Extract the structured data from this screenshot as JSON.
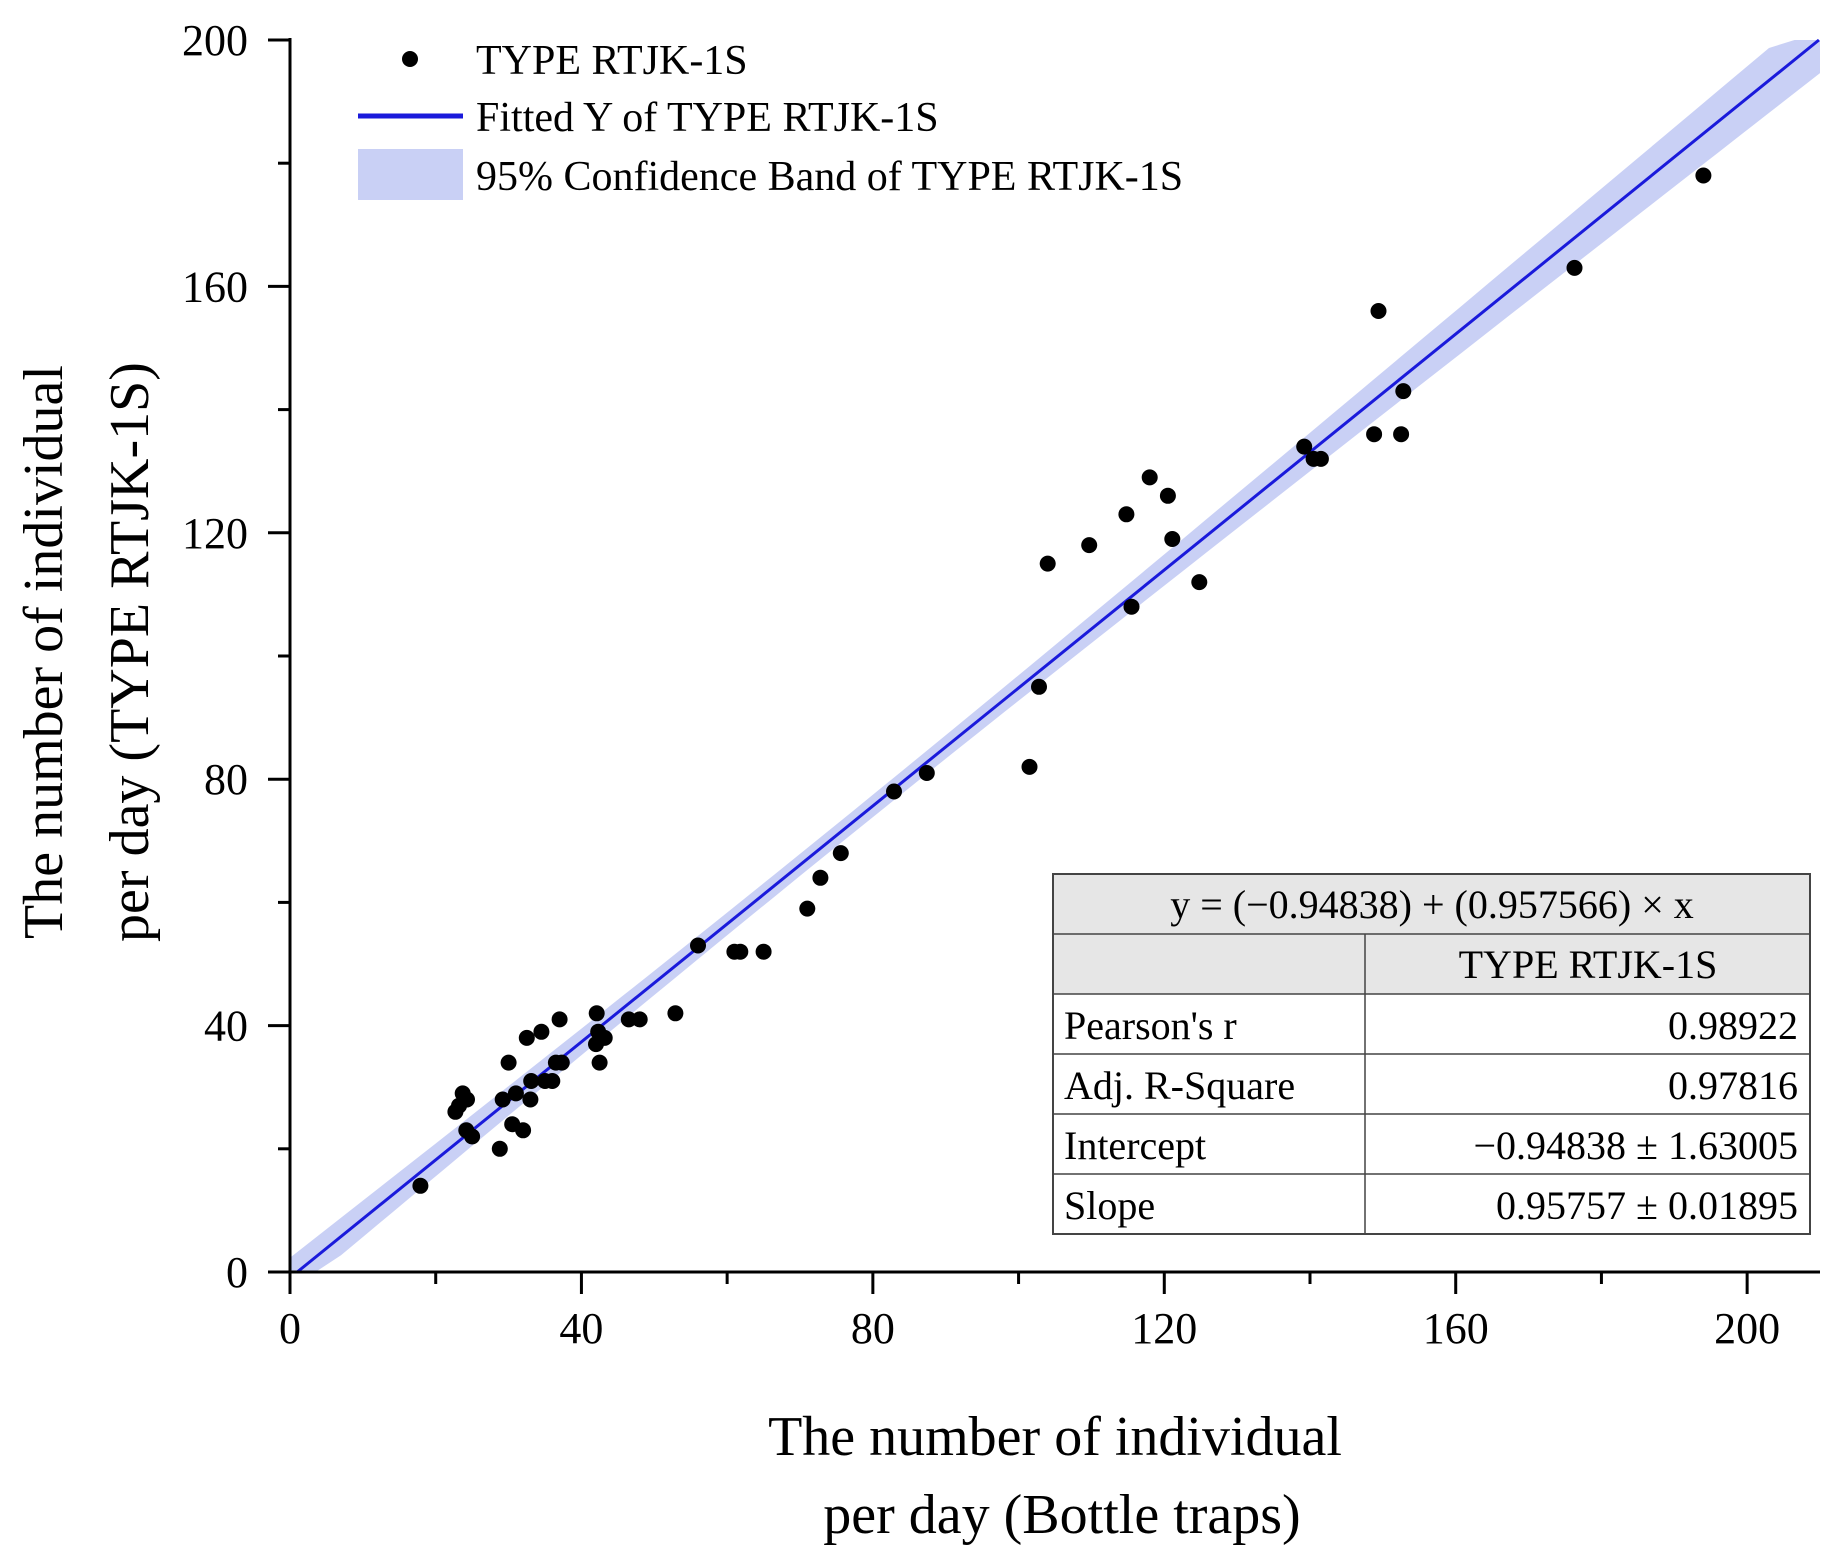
{
  "chart_data": {
    "type": "scatter",
    "title": "",
    "xlabel_lines": [
      "The number of individual",
      "per day (Bottle traps)"
    ],
    "ylabel_lines": [
      "The number of individual",
      "per day (TYPE RTJK-1S)"
    ],
    "xlim": [
      0,
      210
    ],
    "ylim": [
      0,
      200
    ],
    "x_ticks": [
      0,
      40,
      80,
      120,
      160,
      200
    ],
    "y_ticks": [
      0,
      40,
      80,
      120,
      160,
      200
    ],
    "x_minor_ticks": [
      20,
      60,
      100,
      140,
      180
    ],
    "y_minor_ticks": [
      20,
      60,
      100,
      140,
      180
    ],
    "legend": {
      "position": "top-left",
      "entries": [
        "TYPE RTJK-1S",
        "Fitted Y of TYPE RTJK-1S",
        "95% Confidence Band of TYPE RTJK-1S"
      ]
    },
    "colors": {
      "points": "#000000",
      "fit": "#1a1adb",
      "band": "#c9d0f5",
      "table_header": "#e6e6e6"
    },
    "fit": {
      "intercept": -0.94838,
      "slope": 0.957566
    },
    "series": [
      {
        "name": "TYPE RTJK-1S",
        "x": [
          17.9,
          22.7,
          23.2,
          23.7,
          24.2,
          24.3,
          25,
          28.8,
          29.2,
          30,
          30.5,
          31,
          32,
          32.5,
          33,
          33.1,
          34.5,
          35,
          36,
          36.5,
          37,
          37.3,
          42,
          42.1,
          42.3,
          42.5,
          43.2,
          46.5,
          48,
          52.9,
          56,
          61,
          61.8,
          65,
          71,
          72.8,
          75.6,
          82.9,
          87.4,
          101.5,
          102.8,
          104,
          109.7,
          114.8,
          115.5,
          118,
          120.5,
          121.1,
          124.8,
          139.2,
          140.5,
          141.5,
          148.8,
          149.4,
          152.5,
          152.8,
          176.3,
          194
        ],
        "y": [
          14,
          26,
          27,
          29,
          23,
          28,
          22,
          20,
          28,
          34,
          24,
          29,
          23,
          38,
          28,
          31,
          39,
          31,
          31,
          34,
          41,
          34,
          37,
          42,
          39,
          34,
          38,
          41,
          41,
          42,
          53,
          52,
          52,
          52,
          59,
          64,
          68,
          78,
          81,
          82,
          95,
          115,
          118,
          123,
          108,
          129,
          126,
          119,
          112,
          134,
          132,
          132,
          136,
          156,
          136,
          143,
          163,
          178
        ]
      }
    ],
    "stats_table": {
      "equation": "y = (−0.94838) + (0.957566) × x",
      "column_header": "TYPE RTJK-1S",
      "rows": [
        {
          "label": "Pearson's r",
          "value": "0.98922"
        },
        {
          "label": "Adj. R-Square",
          "value": "0.97816"
        },
        {
          "label": "Intercept",
          "value": "−0.94838 ± 1.63005"
        },
        {
          "label": "Slope",
          "value": "0.95757 ± 0.01895"
        }
      ]
    }
  }
}
